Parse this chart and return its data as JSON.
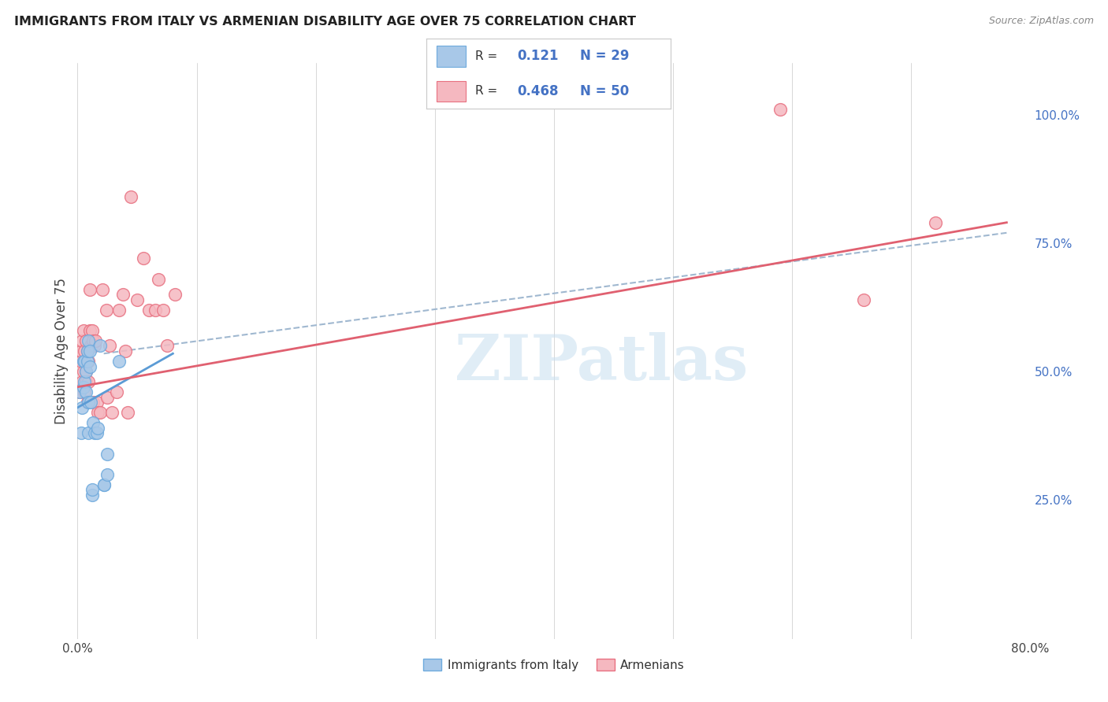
{
  "title": "IMMIGRANTS FROM ITALY VS ARMENIAN DISABILITY AGE OVER 75 CORRELATION CHART",
  "source": "Source: ZipAtlas.com",
  "ylabel": "Disability Age Over 75",
  "legend_label1": "Immigrants from Italy",
  "legend_label2": "Armenians",
  "color_italy": "#a8c8e8",
  "color_italy_edge": "#6eaadd",
  "color_armenian": "#f5b8c0",
  "color_armenian_edge": "#e87080",
  "color_italy_line": "#5b9bd5",
  "color_armenian_line": "#e06070",
  "color_r_value": "#4472c4",
  "color_dashed": "#a0b8d0",
  "background": "#ffffff",
  "watermark": "ZIPatlas",
  "italy_x": [
    0.002,
    0.003,
    0.004,
    0.005,
    0.005,
    0.006,
    0.006,
    0.007,
    0.007,
    0.008,
    0.008,
    0.009,
    0.009,
    0.009,
    0.01,
    0.01,
    0.011,
    0.012,
    0.012,
    0.013,
    0.014,
    0.016,
    0.017,
    0.019,
    0.022,
    0.022,
    0.025,
    0.025,
    0.035
  ],
  "italy_y": [
    0.46,
    0.38,
    0.43,
    0.47,
    0.52,
    0.48,
    0.52,
    0.46,
    0.5,
    0.52,
    0.54,
    0.56,
    0.44,
    0.38,
    0.51,
    0.54,
    0.44,
    0.26,
    0.27,
    0.4,
    0.38,
    0.38,
    0.39,
    0.55,
    0.28,
    0.28,
    0.34,
    0.3,
    0.52
  ],
  "armenian_x": [
    0.002,
    0.003,
    0.003,
    0.004,
    0.004,
    0.005,
    0.005,
    0.006,
    0.006,
    0.007,
    0.007,
    0.007,
    0.008,
    0.008,
    0.009,
    0.009,
    0.01,
    0.01,
    0.011,
    0.012,
    0.012,
    0.013,
    0.013,
    0.014,
    0.015,
    0.016,
    0.017,
    0.019,
    0.021,
    0.024,
    0.025,
    0.027,
    0.029,
    0.033,
    0.035,
    0.038,
    0.04,
    0.042,
    0.045,
    0.05,
    0.055,
    0.06,
    0.065,
    0.068,
    0.072,
    0.075,
    0.082,
    0.59,
    0.66,
    0.72
  ],
  "armenian_y": [
    0.46,
    0.52,
    0.54,
    0.48,
    0.56,
    0.5,
    0.58,
    0.46,
    0.54,
    0.48,
    0.5,
    0.56,
    0.44,
    0.54,
    0.48,
    0.52,
    0.58,
    0.66,
    0.55,
    0.55,
    0.58,
    0.56,
    0.44,
    0.55,
    0.56,
    0.44,
    0.42,
    0.42,
    0.66,
    0.62,
    0.45,
    0.55,
    0.42,
    0.46,
    0.62,
    0.65,
    0.54,
    0.42,
    0.84,
    0.64,
    0.72,
    0.62,
    0.62,
    0.68,
    0.62,
    0.55,
    0.65,
    1.01,
    0.64,
    0.79
  ],
  "italy_line_x": [
    0.0,
    0.08
  ],
  "italy_line_y": [
    0.43,
    0.535
  ],
  "armenian_line_x": [
    0.0,
    0.78
  ],
  "armenian_line_y": [
    0.47,
    0.79
  ],
  "dashed_line_x": [
    0.022,
    0.78
  ],
  "dashed_line_y": [
    0.535,
    0.77
  ],
  "xlim": [
    0.0,
    0.8
  ],
  "ylim": [
    -0.02,
    1.1
  ],
  "x_ticks": [
    0.0,
    0.1,
    0.2,
    0.3,
    0.4,
    0.5,
    0.6,
    0.7,
    0.8
  ],
  "x_tick_labels": [
    "0.0%",
    "",
    "",
    "",
    "",
    "",
    "",
    "",
    "80.0%"
  ],
  "y_ticks_right": [
    0.25,
    0.5,
    0.75,
    1.0
  ],
  "y_tick_labels_right": [
    "25.0%",
    "50.0%",
    "75.0%",
    "100.0%"
  ],
  "figsize": [
    14.06,
    8.92
  ],
  "dpi": 100
}
